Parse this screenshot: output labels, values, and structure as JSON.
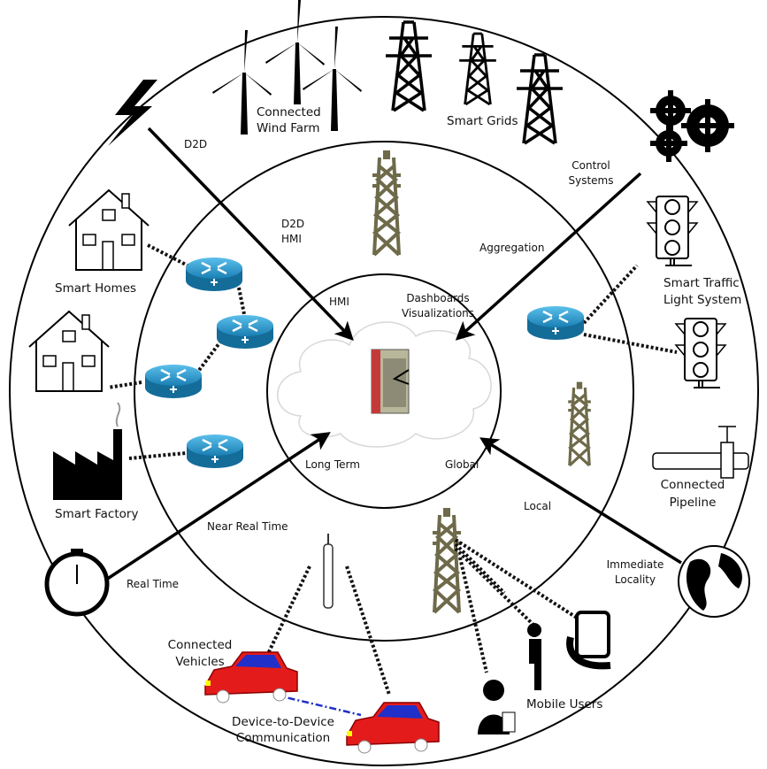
{
  "labels": {
    "wind_farm": [
      "Connected",
      "Wind Farm"
    ],
    "smart_grids": [
      "Smart Grids"
    ],
    "d2d_outer": [
      "D2D"
    ],
    "control_systems": [
      "Control",
      "Systems"
    ],
    "d2d_hmi": [
      "D2D",
      "HMI"
    ],
    "aggregation": [
      "Aggregation"
    ],
    "smart_homes": [
      "Smart Homes"
    ],
    "hmi": [
      "HMI"
    ],
    "dashboards": [
      "Dashboards",
      "Visualizations"
    ],
    "traffic_lights": [
      "Smart Traffic",
      "Light System"
    ],
    "long_term": [
      "Long Term"
    ],
    "global": [
      "Global"
    ],
    "smart_factory": [
      "Smart Factory"
    ],
    "pipeline": [
      "Connected",
      "Pipeline"
    ],
    "near_real_time": [
      "Near Real Time"
    ],
    "local": [
      "Local"
    ],
    "immediate_locality": [
      "Immediate",
      "Locality"
    ],
    "real_time": [
      "Real Time"
    ],
    "vehicles": [
      "Connected",
      "Vehicles"
    ],
    "d2d_comm": [
      "Device-to-Device",
      "Communication"
    ],
    "mobile_users": [
      "Mobile Users"
    ]
  }
}
